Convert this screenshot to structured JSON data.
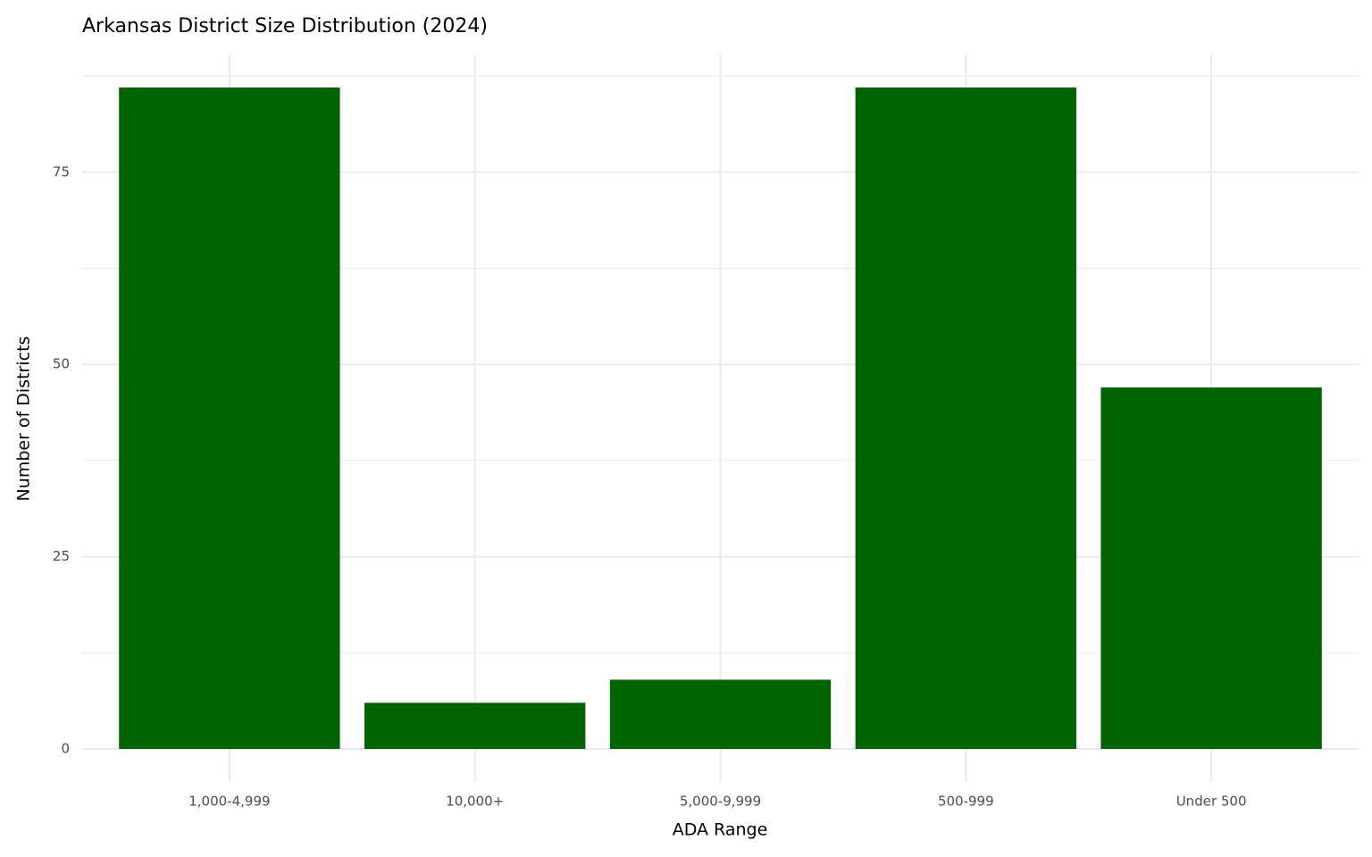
{
  "chart_data": {
    "type": "bar",
    "title": "Arkansas District Size Distribution (2024)",
    "x_label": "ADA Range",
    "y_label": "Number of Districts",
    "categories": [
      "1,000-4,999",
      "10,000+",
      "5,000-9,999",
      "500-999",
      "Under 500"
    ],
    "values": [
      86,
      6,
      9,
      86,
      47
    ],
    "color": "#006400",
    "ylim": [
      -4.3,
      90.3
    ],
    "yticks": [
      0,
      25,
      50,
      75
    ],
    "minor_yticks": [
      12.5,
      37.5,
      62.5,
      87.5
    ],
    "grid": true
  }
}
